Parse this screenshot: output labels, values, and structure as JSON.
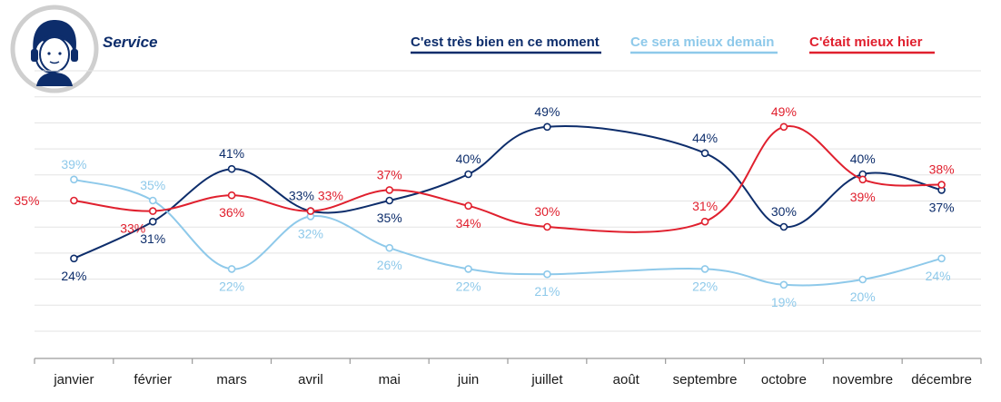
{
  "chart_data": {
    "type": "line",
    "title": "Service",
    "categories": [
      "janvier",
      "février",
      "mars",
      "avril",
      "mai",
      "juin",
      "juillet",
      "août",
      "septembre",
      "octobre",
      "novembre",
      "décembre"
    ],
    "series": [
      {
        "name": "C'est très bien en ce moment",
        "color": "#0d2d6b",
        "values": [
          24,
          31,
          41,
          33,
          35,
          40,
          49,
          null,
          44,
          30,
          40,
          37
        ],
        "labels": [
          "24%",
          "31%",
          "41%",
          "33%",
          "35%",
          "40%",
          "49%",
          null,
          "44%",
          "30%",
          "40%",
          "37%"
        ]
      },
      {
        "name": "Ce sera mieux demain",
        "color": "#8ec9ea",
        "values": [
          39,
          35,
          22,
          32,
          26,
          22,
          21,
          null,
          22,
          19,
          20,
          24
        ],
        "labels": [
          "39%",
          "35%",
          "22%",
          "32%",
          "26%",
          "22%",
          "21%",
          null,
          "22%",
          "19%",
          "20%",
          "24%"
        ]
      },
      {
        "name": "C'était mieux hier",
        "color": "#e0202e",
        "values": [
          35,
          33,
          36,
          33,
          37,
          34,
          30,
          null,
          31,
          49,
          39,
          38
        ],
        "labels": [
          "35%",
          "33%",
          "36%",
          "33%",
          "37%",
          "34%",
          "30%",
          null,
          "31%",
          "49%",
          "39%",
          "38%"
        ]
      }
    ],
    "ylim": [
      0,
      55
    ],
    "grid": true,
    "legend": "top-right",
    "icon": "customer-service-headset-icon"
  }
}
